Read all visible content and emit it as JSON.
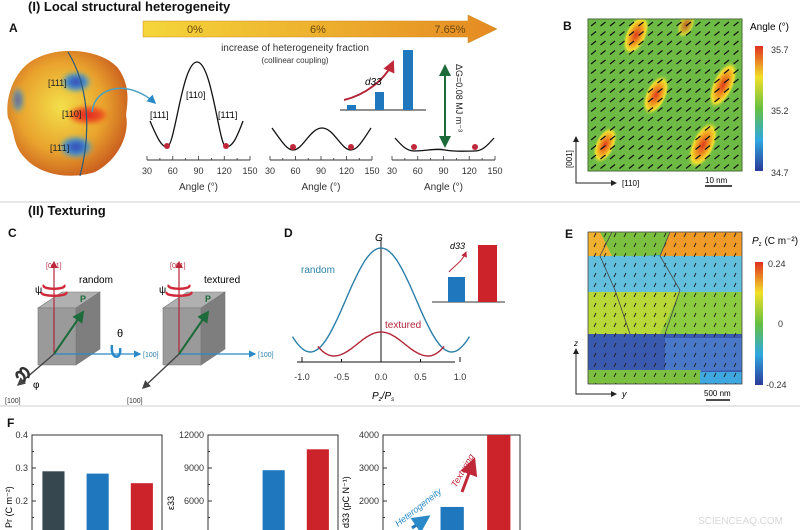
{
  "sections": {
    "one": "(I) Local structural heterogeneity",
    "two": "(II) Texturing"
  },
  "panel_labels": {
    "a": "A",
    "b": "B",
    "c": "C",
    "d": "D",
    "e": "E",
    "f": "F"
  },
  "panel_a": {
    "fraction_arrow": {
      "labels": [
        "0%",
        "6%",
        "7.65%"
      ],
      "colors": [
        "#f5d63a",
        "#e58a22"
      ]
    },
    "caption": "increase of heterogeneity fraction",
    "subcaption": "(collinear coupling)",
    "sphere_labels": [
      "[111]",
      "[110]",
      "[11̄1]"
    ],
    "curve_labels": [
      "[111]",
      "[110]",
      "[11̄1]"
    ],
    "x_ticks": [
      "30",
      "60",
      "90",
      "120",
      "150"
    ],
    "x_label": "Angle (°)",
    "inset_label": "d33",
    "delta_g": "ΔG=0.08 MJ m⁻³"
  },
  "panel_b": {
    "colorbar_title": "Angle (°)",
    "colorbar_ticks": [
      "35.7",
      "35.2",
      "34.7"
    ],
    "axis_vertical": "[001]",
    "axis_horizontal": "[110]",
    "scale_bar": "10 nm"
  },
  "panel_c": {
    "left": {
      "title": "random",
      "up": "[001]",
      "right": "[100]",
      "front": "[100]",
      "p": "P",
      "psi": "ψ",
      "theta": "θ",
      "phi": "φ"
    },
    "right": {
      "title": "textured",
      "up": "[001]",
      "right": "[100]",
      "front": "[100]",
      "p": "P",
      "psi": "ψ"
    }
  },
  "panel_d": {
    "y_label": "G",
    "x_label_main": "P",
    "x_label_sub1": "z",
    "x_label_sub2": "s",
    "x_ticks": [
      "-1.0",
      "-0.5",
      "0.0",
      "0.5",
      "1.0"
    ],
    "series": [
      "random",
      "textured"
    ],
    "series_colors": [
      "#2a7fa8",
      "#b3263a"
    ],
    "inset_label": "d33"
  },
  "panel_e": {
    "colorbar_title": "P",
    "colorbar_title_sub": "z",
    "colorbar_unit": " (C m⁻²)",
    "colorbar_ticks": [
      "0.24",
      "0",
      "-0.24"
    ],
    "axis_vertical": "z",
    "axis_horizontal": "y",
    "scale_bar": "500 nm"
  },
  "chart_data": [
    {
      "type": "bar",
      "ylabel": "Pr (C m⁻²)",
      "y_ticks": [
        "0.4",
        "0.3",
        "0.2"
      ],
      "ylim_visible": [
        0.17,
        0.4
      ],
      "values": [
        0.29,
        0.283,
        0.254
      ],
      "colors": [
        "#37474f",
        "#1f78be",
        "#cc2229"
      ]
    },
    {
      "type": "bar",
      "ylabel": "ε33",
      "y_ticks": [
        "12000",
        "9000",
        "6000"
      ],
      "ylim_visible": [
        5100,
        12000
      ],
      "values": [
        null,
        8800,
        10700
      ],
      "colors": [
        "#37474f",
        "#1f78be",
        "#cc2229"
      ]
    },
    {
      "type": "bar",
      "ylabel": "d33 (pC N⁻¹)",
      "y_ticks": [
        "4000",
        "3000",
        "2000"
      ],
      "ylim_visible": [
        1100,
        4000
      ],
      "values": [
        null,
        1820,
        4000
      ],
      "colors": [
        "#37474f",
        "#1f78be",
        "#cc2229"
      ],
      "annotations": [
        "Heterogeneity",
        "Texturing"
      ]
    }
  ],
  "watermark": "SCIENCEAQ.COM"
}
